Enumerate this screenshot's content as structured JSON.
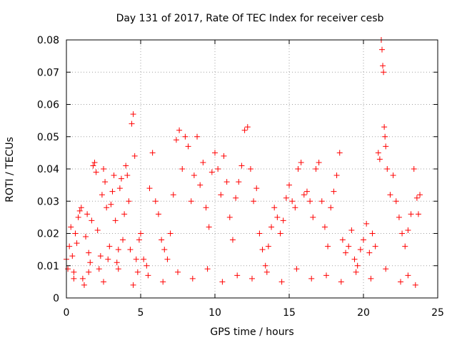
{
  "chart_data": {
    "type": "scatter",
    "title": "Day 131 of 2017, Rate Of TEC Index for receiver cesb",
    "xlabel": "GPS time / hours",
    "ylabel": "ROTI / TECUs",
    "xlim": [
      0,
      25
    ],
    "ylim": [
      0,
      0.08
    ],
    "x_ticks": [
      0,
      5,
      10,
      15,
      20,
      25
    ],
    "x_tick_labels": [
      "0",
      "5",
      "10",
      "15",
      "20",
      "25"
    ],
    "y_ticks": [
      0,
      0.01,
      0.02,
      0.03,
      0.04,
      0.05,
      0.06,
      0.07,
      0.08
    ],
    "y_tick_labels": [
      "0",
      "0.01",
      "0.02",
      "0.03",
      "0.04",
      "0.05",
      "0.06",
      "0.07",
      "0.08"
    ],
    "grid": true,
    "legend": "none",
    "marker": "plus",
    "color": "#ff0000",
    "series": [
      {
        "name": "",
        "points": [
          [
            0.0,
            0.012
          ],
          [
            0.1,
            0.009
          ],
          [
            0.2,
            0.016
          ],
          [
            0.3,
            0.022
          ],
          [
            0.4,
            0.013
          ],
          [
            0.5,
            0.008
          ],
          [
            0.6,
            0.02
          ],
          [
            0.7,
            0.017
          ],
          [
            0.8,
            0.025
          ],
          [
            0.9,
            0.027
          ],
          [
            1.0,
            0.028
          ],
          [
            1.1,
            0.006
          ],
          [
            1.2,
            0.004
          ],
          [
            1.3,
            0.019
          ],
          [
            1.4,
            0.026
          ],
          [
            1.5,
            0.014
          ],
          [
            1.6,
            0.011
          ],
          [
            1.7,
            0.024
          ],
          [
            1.8,
            0.041
          ],
          [
            1.9,
            0.042
          ],
          [
            2.0,
            0.039
          ],
          [
            2.1,
            0.021
          ],
          [
            2.2,
            0.009
          ],
          [
            2.3,
            0.013
          ],
          [
            2.4,
            0.032
          ],
          [
            2.5,
            0.04
          ],
          [
            2.6,
            0.036
          ],
          [
            2.7,
            0.028
          ],
          [
            2.8,
            0.012
          ],
          [
            2.9,
            0.016
          ],
          [
            3.0,
            0.029
          ],
          [
            3.1,
            0.033
          ],
          [
            3.2,
            0.038
          ],
          [
            3.3,
            0.024
          ],
          [
            3.4,
            0.011
          ],
          [
            3.5,
            0.015
          ],
          [
            3.6,
            0.034
          ],
          [
            3.7,
            0.037
          ],
          [
            3.8,
            0.018
          ],
          [
            3.9,
            0.026
          ],
          [
            4.0,
            0.041
          ],
          [
            4.1,
            0.038
          ],
          [
            4.2,
            0.03
          ],
          [
            4.3,
            0.015
          ],
          [
            4.4,
            0.054
          ],
          [
            4.5,
            0.057
          ],
          [
            4.6,
            0.044
          ],
          [
            4.7,
            0.012
          ],
          [
            4.8,
            0.008
          ],
          [
            4.9,
            0.018
          ],
          [
            5.0,
            0.02
          ],
          [
            5.2,
            0.012
          ],
          [
            5.4,
            0.01
          ],
          [
            5.6,
            0.034
          ],
          [
            5.8,
            0.045
          ],
          [
            6.0,
            0.03
          ],
          [
            6.2,
            0.026
          ],
          [
            6.4,
            0.018
          ],
          [
            6.6,
            0.015
          ],
          [
            6.8,
            0.012
          ],
          [
            7.0,
            0.02
          ],
          [
            7.2,
            0.032
          ],
          [
            7.4,
            0.049
          ],
          [
            7.6,
            0.052
          ],
          [
            7.8,
            0.04
          ],
          [
            8.0,
            0.05
          ],
          [
            8.2,
            0.047
          ],
          [
            8.4,
            0.03
          ],
          [
            8.6,
            0.038
          ],
          [
            8.8,
            0.05
          ],
          [
            9.0,
            0.035
          ],
          [
            9.2,
            0.042
          ],
          [
            9.4,
            0.028
          ],
          [
            9.6,
            0.022
          ],
          [
            9.8,
            0.039
          ],
          [
            10.0,
            0.045
          ],
          [
            10.2,
            0.04
          ],
          [
            10.4,
            0.032
          ],
          [
            10.6,
            0.044
          ],
          [
            10.8,
            0.036
          ],
          [
            11.0,
            0.025
          ],
          [
            11.2,
            0.018
          ],
          [
            11.4,
            0.031
          ],
          [
            11.6,
            0.036
          ],
          [
            11.8,
            0.041
          ],
          [
            12.0,
            0.052
          ],
          [
            12.2,
            0.053
          ],
          [
            12.4,
            0.04
          ],
          [
            12.6,
            0.03
          ],
          [
            12.8,
            0.034
          ],
          [
            13.0,
            0.02
          ],
          [
            13.2,
            0.015
          ],
          [
            13.4,
            0.01
          ],
          [
            13.6,
            0.016
          ],
          [
            13.8,
            0.022
          ],
          [
            14.0,
            0.028
          ],
          [
            14.2,
            0.025
          ],
          [
            14.4,
            0.02
          ],
          [
            14.6,
            0.024
          ],
          [
            14.8,
            0.031
          ],
          [
            15.0,
            0.035
          ],
          [
            15.2,
            0.03
          ],
          [
            15.4,
            0.028
          ],
          [
            15.6,
            0.04
          ],
          [
            15.8,
            0.042
          ],
          [
            16.0,
            0.032
          ],
          [
            16.2,
            0.033
          ],
          [
            16.4,
            0.03
          ],
          [
            16.6,
            0.025
          ],
          [
            16.8,
            0.04
          ],
          [
            17.0,
            0.042
          ],
          [
            17.2,
            0.03
          ],
          [
            17.4,
            0.022
          ],
          [
            17.6,
            0.016
          ],
          [
            17.8,
            0.028
          ],
          [
            18.0,
            0.033
          ],
          [
            18.2,
            0.038
          ],
          [
            18.4,
            0.045
          ],
          [
            18.6,
            0.018
          ],
          [
            18.8,
            0.014
          ],
          [
            19.0,
            0.016
          ],
          [
            19.2,
            0.021
          ],
          [
            19.4,
            0.012
          ],
          [
            19.6,
            0.01
          ],
          [
            19.8,
            0.015
          ],
          [
            20.0,
            0.018
          ],
          [
            20.2,
            0.023
          ],
          [
            20.4,
            0.014
          ],
          [
            20.6,
            0.02
          ],
          [
            20.8,
            0.016
          ],
          [
            21.0,
            0.045
          ],
          [
            21.1,
            0.043
          ],
          [
            21.2,
            0.08
          ],
          [
            21.25,
            0.077
          ],
          [
            21.3,
            0.072
          ],
          [
            21.35,
            0.07
          ],
          [
            21.4,
            0.053
          ],
          [
            21.45,
            0.05
          ],
          [
            21.5,
            0.047
          ],
          [
            21.6,
            0.04
          ],
          [
            21.8,
            0.032
          ],
          [
            22.0,
            0.038
          ],
          [
            22.2,
            0.03
          ],
          [
            22.4,
            0.025
          ],
          [
            22.6,
            0.02
          ],
          [
            22.8,
            0.016
          ],
          [
            23.0,
            0.021
          ],
          [
            23.2,
            0.026
          ],
          [
            23.4,
            0.04
          ],
          [
            23.6,
            0.031
          ],
          [
            23.7,
            0.026
          ],
          [
            23.8,
            0.032
          ],
          [
            0.5,
            0.006
          ],
          [
            2.5,
            0.005
          ],
          [
            4.5,
            0.004
          ],
          [
            6.5,
            0.005
          ],
          [
            8.5,
            0.006
          ],
          [
            10.5,
            0.005
          ],
          [
            12.5,
            0.006
          ],
          [
            14.5,
            0.005
          ],
          [
            16.5,
            0.006
          ],
          [
            18.5,
            0.005
          ],
          [
            20.5,
            0.006
          ],
          [
            22.5,
            0.005
          ],
          [
            23.5,
            0.004
          ],
          [
            1.5,
            0.008
          ],
          [
            3.5,
            0.009
          ],
          [
            5.5,
            0.007
          ],
          [
            7.5,
            0.008
          ],
          [
            9.5,
            0.009
          ],
          [
            11.5,
            0.007
          ],
          [
            13.5,
            0.008
          ],
          [
            15.5,
            0.009
          ],
          [
            17.5,
            0.007
          ],
          [
            19.5,
            0.008
          ],
          [
            21.5,
            0.009
          ],
          [
            23.0,
            0.007
          ]
        ]
      }
    ]
  }
}
